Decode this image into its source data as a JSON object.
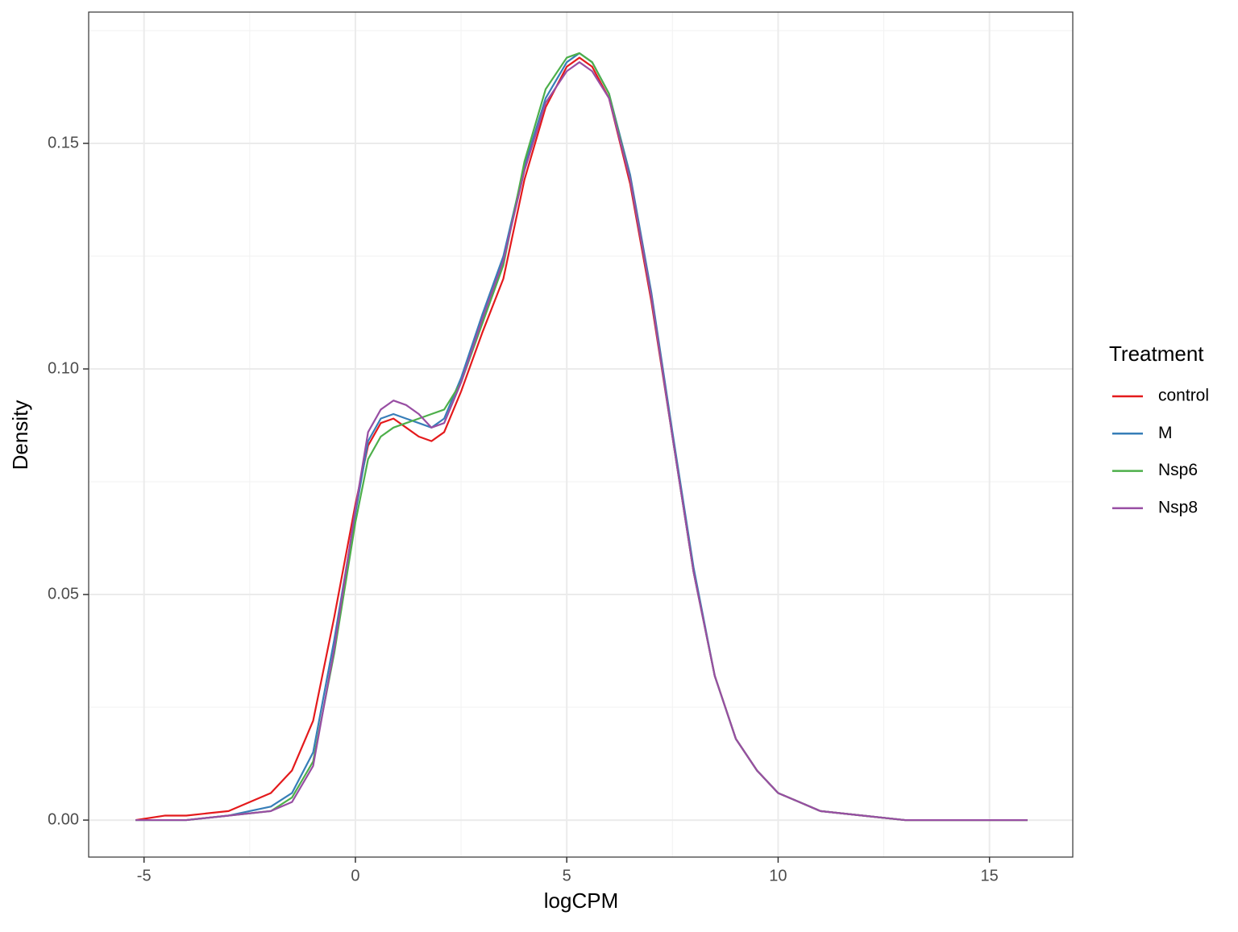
{
  "chart_data": {
    "type": "line",
    "xlabel": "logCPM",
    "ylabel": "Density",
    "legend_title": "Treatment",
    "legend_position": "right",
    "x": [
      -5.2,
      -4.5,
      -4,
      -3,
      -2,
      -1.5,
      -1,
      -0.5,
      0,
      0.3,
      0.6,
      0.9,
      1.2,
      1.5,
      1.8,
      2.1,
      2.5,
      3,
      3.5,
      4,
      4.5,
      5,
      5.3,
      5.6,
      6,
      6.5,
      7,
      7.5,
      8,
      8.5,
      9,
      9.5,
      10,
      10.5,
      11,
      12,
      13,
      14,
      15,
      15.9
    ],
    "series": [
      {
        "name": "control",
        "color": "#e41a1c",
        "values": [
          0,
          0.001,
          0.001,
          0.002,
          0.006,
          0.011,
          0.022,
          0.045,
          0.07,
          0.083,
          0.088,
          0.089,
          0.087,
          0.085,
          0.084,
          0.086,
          0.095,
          0.108,
          0.12,
          0.142,
          0.158,
          0.167,
          0.169,
          0.167,
          0.16,
          0.141,
          0.115,
          0.085,
          0.055,
          0.032,
          0.018,
          0.011,
          0.006,
          0.004,
          0.002,
          0.001,
          0,
          0,
          0,
          0
        ]
      },
      {
        "name": "M",
        "color": "#377eb8",
        "values": [
          0,
          0,
          0,
          0.001,
          0.003,
          0.006,
          0.015,
          0.04,
          0.068,
          0.084,
          0.089,
          0.09,
          0.089,
          0.088,
          0.087,
          0.089,
          0.098,
          0.112,
          0.125,
          0.145,
          0.16,
          0.168,
          0.17,
          0.168,
          0.161,
          0.143,
          0.117,
          0.086,
          0.056,
          0.032,
          0.018,
          0.011,
          0.006,
          0.004,
          0.002,
          0.001,
          0,
          0,
          0,
          0
        ]
      },
      {
        "name": "Nsp6",
        "color": "#4daf4a",
        "values": [
          0,
          0,
          0,
          0.001,
          0.002,
          0.005,
          0.013,
          0.037,
          0.066,
          0.08,
          0.085,
          0.087,
          0.088,
          0.089,
          0.09,
          0.091,
          0.097,
          0.11,
          0.123,
          0.146,
          0.162,
          0.169,
          0.17,
          0.168,
          0.161,
          0.142,
          0.116,
          0.085,
          0.055,
          0.032,
          0.018,
          0.011,
          0.006,
          0.004,
          0.002,
          0.001,
          0,
          0,
          0,
          0
        ]
      },
      {
        "name": "Nsp8",
        "color": "#984ea3",
        "values": [
          0,
          0,
          0,
          0.001,
          0.002,
          0.004,
          0.012,
          0.038,
          0.069,
          0.086,
          0.091,
          0.093,
          0.092,
          0.09,
          0.087,
          0.088,
          0.097,
          0.111,
          0.124,
          0.144,
          0.159,
          0.166,
          0.168,
          0.166,
          0.16,
          0.142,
          0.116,
          0.085,
          0.055,
          0.032,
          0.018,
          0.011,
          0.006,
          0.004,
          0.002,
          0.001,
          0,
          0,
          0,
          0
        ]
      }
    ],
    "xlim": [
      -6.31,
      16.97
    ],
    "ylim": [
      -0.0082,
      0.1791
    ],
    "xticks": [
      -5,
      0,
      5,
      10,
      15
    ],
    "yticks": [
      {
        "value": 0,
        "label": "0.00"
      },
      {
        "value": 0.05,
        "label": "0.05"
      },
      {
        "value": 0.1,
        "label": "0.10"
      },
      {
        "value": 0.15,
        "label": "0.15"
      }
    ],
    "x_minor_grid": [
      -2.5,
      2.5,
      7.5,
      12.5
    ],
    "y_minor_grid": [
      0.025,
      0.075,
      0.125,
      0.175
    ],
    "grid": true
  }
}
